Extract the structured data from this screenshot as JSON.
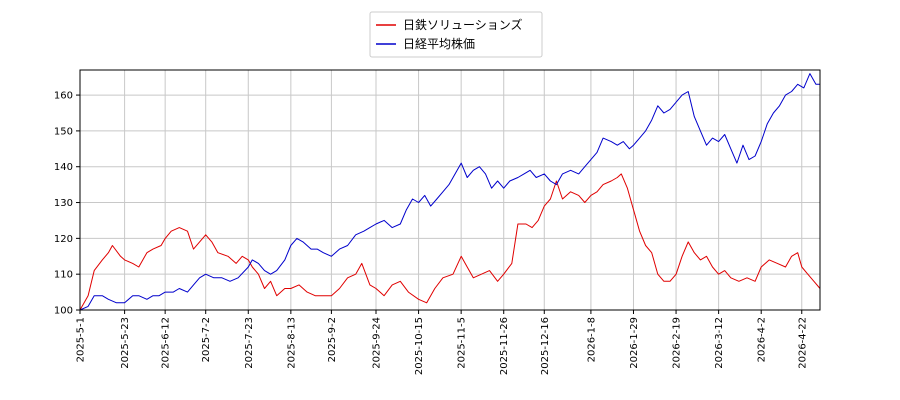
{
  "chart_data": {
    "type": "line",
    "title": "",
    "xlabel": "",
    "ylabel": "",
    "ylim": [
      100,
      167
    ],
    "yticks": [
      100,
      110,
      120,
      130,
      140,
      150,
      160
    ],
    "xlim": [
      "2025-05-01",
      "2026-05-01"
    ],
    "xticks": [
      "2025-5-1",
      "2025-5-23",
      "2025-6-12",
      "2025-7-2",
      "2025-7-23",
      "2025-8-13",
      "2025-9-2",
      "2025-9-24",
      "2025-10-15",
      "2025-11-5",
      "2025-11-26",
      "2025-12-16",
      "2026-1-8",
      "2026-1-29",
      "2026-2-19",
      "2026-3-12",
      "2026-4-2",
      "2026-4-22"
    ],
    "grid": true,
    "legend_position": "top-center",
    "series": [
      {
        "name": "日鉄ソリューションズ",
        "color": "#e00000",
        "points": [
          [
            "2025-05-01",
            100
          ],
          [
            "2025-05-05",
            104
          ],
          [
            "2025-05-08",
            111
          ],
          [
            "2025-05-12",
            114
          ],
          [
            "2025-05-15",
            116
          ],
          [
            "2025-05-17",
            118
          ],
          [
            "2025-05-21",
            115
          ],
          [
            "2025-05-23",
            114
          ],
          [
            "2025-05-27",
            113
          ],
          [
            "2025-05-30",
            112
          ],
          [
            "2025-06-03",
            116
          ],
          [
            "2025-06-06",
            117
          ],
          [
            "2025-06-10",
            118
          ],
          [
            "2025-06-12",
            120
          ],
          [
            "2025-06-15",
            122
          ],
          [
            "2025-06-19",
            123
          ],
          [
            "2025-06-23",
            122
          ],
          [
            "2025-06-26",
            117
          ],
          [
            "2025-07-02",
            121
          ],
          [
            "2025-07-05",
            119
          ],
          [
            "2025-07-08",
            116
          ],
          [
            "2025-07-13",
            115
          ],
          [
            "2025-07-17",
            113
          ],
          [
            "2025-07-20",
            115
          ],
          [
            "2025-07-23",
            114
          ],
          [
            "2025-07-25",
            112
          ],
          [
            "2025-07-28",
            110
          ],
          [
            "2025-07-31",
            106
          ],
          [
            "2025-08-03",
            108
          ],
          [
            "2025-08-06",
            104
          ],
          [
            "2025-08-10",
            106
          ],
          [
            "2025-08-13",
            106
          ],
          [
            "2025-08-17",
            107
          ],
          [
            "2025-08-21",
            105
          ],
          [
            "2025-08-25",
            104
          ],
          [
            "2025-08-29",
            104
          ],
          [
            "2025-09-02",
            104
          ],
          [
            "2025-09-06",
            106
          ],
          [
            "2025-09-10",
            109
          ],
          [
            "2025-09-14",
            110
          ],
          [
            "2025-09-17",
            113
          ],
          [
            "2025-09-21",
            107
          ],
          [
            "2025-09-24",
            106
          ],
          [
            "2025-09-28",
            104
          ],
          [
            "2025-10-02",
            107
          ],
          [
            "2025-10-06",
            108
          ],
          [
            "2025-10-10",
            105
          ],
          [
            "2025-10-15",
            103
          ],
          [
            "2025-10-19",
            102
          ],
          [
            "2025-10-23",
            106
          ],
          [
            "2025-10-27",
            109
          ],
          [
            "2025-11-01",
            110
          ],
          [
            "2025-11-05",
            115
          ],
          [
            "2025-11-08",
            112
          ],
          [
            "2025-11-11",
            109
          ],
          [
            "2025-11-15",
            110
          ],
          [
            "2025-11-19",
            111
          ],
          [
            "2025-11-23",
            108
          ],
          [
            "2025-11-26",
            110
          ],
          [
            "2025-11-30",
            113
          ],
          [
            "2025-12-03",
            124
          ],
          [
            "2025-12-07",
            124
          ],
          [
            "2025-12-10",
            123
          ],
          [
            "2025-12-13",
            125
          ],
          [
            "2025-12-16",
            129
          ],
          [
            "2025-12-19",
            131
          ],
          [
            "2025-12-22",
            136
          ],
          [
            "2025-12-25",
            131
          ],
          [
            "2025-12-29",
            133
          ],
          [
            "2026-01-02",
            132
          ],
          [
            "2026-01-05",
            130
          ],
          [
            "2026-01-08",
            132
          ],
          [
            "2026-01-11",
            133
          ],
          [
            "2026-01-14",
            135
          ],
          [
            "2026-01-18",
            136
          ],
          [
            "2026-01-21",
            137
          ],
          [
            "2026-01-23",
            138
          ],
          [
            "2026-01-26",
            134
          ],
          [
            "2026-01-29",
            128
          ],
          [
            "2026-02-01",
            122
          ],
          [
            "2026-02-04",
            118
          ],
          [
            "2026-02-07",
            116
          ],
          [
            "2026-02-10",
            110
          ],
          [
            "2026-02-13",
            108
          ],
          [
            "2026-02-16",
            108
          ],
          [
            "2026-02-19",
            110
          ],
          [
            "2026-02-22",
            115
          ],
          [
            "2026-02-25",
            119
          ],
          [
            "2026-02-28",
            116
          ],
          [
            "2026-03-03",
            114
          ],
          [
            "2026-03-06",
            115
          ],
          [
            "2026-03-09",
            112
          ],
          [
            "2026-03-12",
            110
          ],
          [
            "2026-03-15",
            111
          ],
          [
            "2026-03-18",
            109
          ],
          [
            "2026-03-22",
            108
          ],
          [
            "2026-03-26",
            109
          ],
          [
            "2026-03-30",
            108
          ],
          [
            "2026-04-02",
            112
          ],
          [
            "2026-04-06",
            114
          ],
          [
            "2026-04-10",
            113
          ],
          [
            "2026-04-14",
            112
          ],
          [
            "2026-04-17",
            115
          ],
          [
            "2026-04-20",
            116
          ],
          [
            "2026-04-22",
            112
          ],
          [
            "2026-04-25",
            110
          ],
          [
            "2026-04-28",
            108
          ],
          [
            "2026-05-01",
            106
          ]
        ]
      },
      {
        "name": "日経平均株価",
        "color": "#0000cc",
        "points": [
          [
            "2025-05-01",
            100
          ],
          [
            "2025-05-05",
            101
          ],
          [
            "2025-05-08",
            104
          ],
          [
            "2025-05-12",
            104
          ],
          [
            "2025-05-15",
            103
          ],
          [
            "2025-05-19",
            102
          ],
          [
            "2025-05-23",
            102
          ],
          [
            "2025-05-27",
            104
          ],
          [
            "2025-05-30",
            104
          ],
          [
            "2025-06-03",
            103
          ],
          [
            "2025-06-06",
            104
          ],
          [
            "2025-06-09",
            104
          ],
          [
            "2025-06-12",
            105
          ],
          [
            "2025-06-16",
            105
          ],
          [
            "2025-06-19",
            106
          ],
          [
            "2025-06-23",
            105
          ],
          [
            "2025-06-26",
            107
          ],
          [
            "2025-06-29",
            109
          ],
          [
            "2025-07-02",
            110
          ],
          [
            "2025-07-06",
            109
          ],
          [
            "2025-07-10",
            109
          ],
          [
            "2025-07-14",
            108
          ],
          [
            "2025-07-18",
            109
          ],
          [
            "2025-07-23",
            112
          ],
          [
            "2025-07-25",
            114
          ],
          [
            "2025-07-28",
            113
          ],
          [
            "2025-07-31",
            111
          ],
          [
            "2025-08-03",
            110
          ],
          [
            "2025-08-06",
            111
          ],
          [
            "2025-08-10",
            114
          ],
          [
            "2025-08-13",
            118
          ],
          [
            "2025-08-16",
            120
          ],
          [
            "2025-08-19",
            119
          ],
          [
            "2025-08-23",
            117
          ],
          [
            "2025-08-26",
            117
          ],
          [
            "2025-08-29",
            116
          ],
          [
            "2025-09-02",
            115
          ],
          [
            "2025-09-06",
            117
          ],
          [
            "2025-09-10",
            118
          ],
          [
            "2025-09-14",
            121
          ],
          [
            "2025-09-18",
            122
          ],
          [
            "2025-09-21",
            123
          ],
          [
            "2025-09-24",
            124
          ],
          [
            "2025-09-28",
            125
          ],
          [
            "2025-10-02",
            123
          ],
          [
            "2025-10-06",
            124
          ],
          [
            "2025-10-09",
            128
          ],
          [
            "2025-10-12",
            131
          ],
          [
            "2025-10-15",
            130
          ],
          [
            "2025-10-18",
            132
          ],
          [
            "2025-10-21",
            129
          ],
          [
            "2025-10-24",
            131
          ],
          [
            "2025-10-27",
            133
          ],
          [
            "2025-10-30",
            135
          ],
          [
            "2025-11-02",
            138
          ],
          [
            "2025-11-05",
            141
          ],
          [
            "2025-11-08",
            137
          ],
          [
            "2025-11-11",
            139
          ],
          [
            "2025-11-14",
            140
          ],
          [
            "2025-11-17",
            138
          ],
          [
            "2025-11-20",
            134
          ],
          [
            "2025-11-23",
            136
          ],
          [
            "2025-11-26",
            134
          ],
          [
            "2025-11-29",
            136
          ],
          [
            "2025-12-03",
            137
          ],
          [
            "2025-12-06",
            138
          ],
          [
            "2025-12-09",
            139
          ],
          [
            "2025-12-12",
            137
          ],
          [
            "2025-12-16",
            138
          ],
          [
            "2025-12-19",
            136
          ],
          [
            "2025-12-22",
            135
          ],
          [
            "2025-12-25",
            138
          ],
          [
            "2025-12-29",
            139
          ],
          [
            "2026-01-02",
            138
          ],
          [
            "2026-01-05",
            140
          ],
          [
            "2026-01-08",
            142
          ],
          [
            "2026-01-11",
            144
          ],
          [
            "2026-01-14",
            148
          ],
          [
            "2026-01-18",
            147
          ],
          [
            "2026-01-21",
            146
          ],
          [
            "2026-01-24",
            147
          ],
          [
            "2026-01-27",
            145
          ],
          [
            "2026-01-29",
            146
          ],
          [
            "2026-02-01",
            148
          ],
          [
            "2026-02-04",
            150
          ],
          [
            "2026-02-07",
            153
          ],
          [
            "2026-02-10",
            157
          ],
          [
            "2026-02-13",
            155
          ],
          [
            "2026-02-16",
            156
          ],
          [
            "2026-02-19",
            158
          ],
          [
            "2026-02-22",
            160
          ],
          [
            "2026-02-25",
            161
          ],
          [
            "2026-02-28",
            154
          ],
          [
            "2026-03-03",
            150
          ],
          [
            "2026-03-06",
            146
          ],
          [
            "2026-03-09",
            148
          ],
          [
            "2026-03-12",
            147
          ],
          [
            "2026-03-15",
            149
          ],
          [
            "2026-03-18",
            145
          ],
          [
            "2026-03-21",
            141
          ],
          [
            "2026-03-24",
            146
          ],
          [
            "2026-03-27",
            142
          ],
          [
            "2026-03-30",
            143
          ],
          [
            "2026-04-02",
            147
          ],
          [
            "2026-04-05",
            152
          ],
          [
            "2026-04-08",
            155
          ],
          [
            "2026-04-11",
            157
          ],
          [
            "2026-04-14",
            160
          ],
          [
            "2026-04-17",
            161
          ],
          [
            "2026-04-20",
            163
          ],
          [
            "2026-04-23",
            162
          ],
          [
            "2026-04-26",
            166
          ],
          [
            "2026-04-29",
            163
          ],
          [
            "2026-05-01",
            163
          ]
        ]
      }
    ]
  }
}
